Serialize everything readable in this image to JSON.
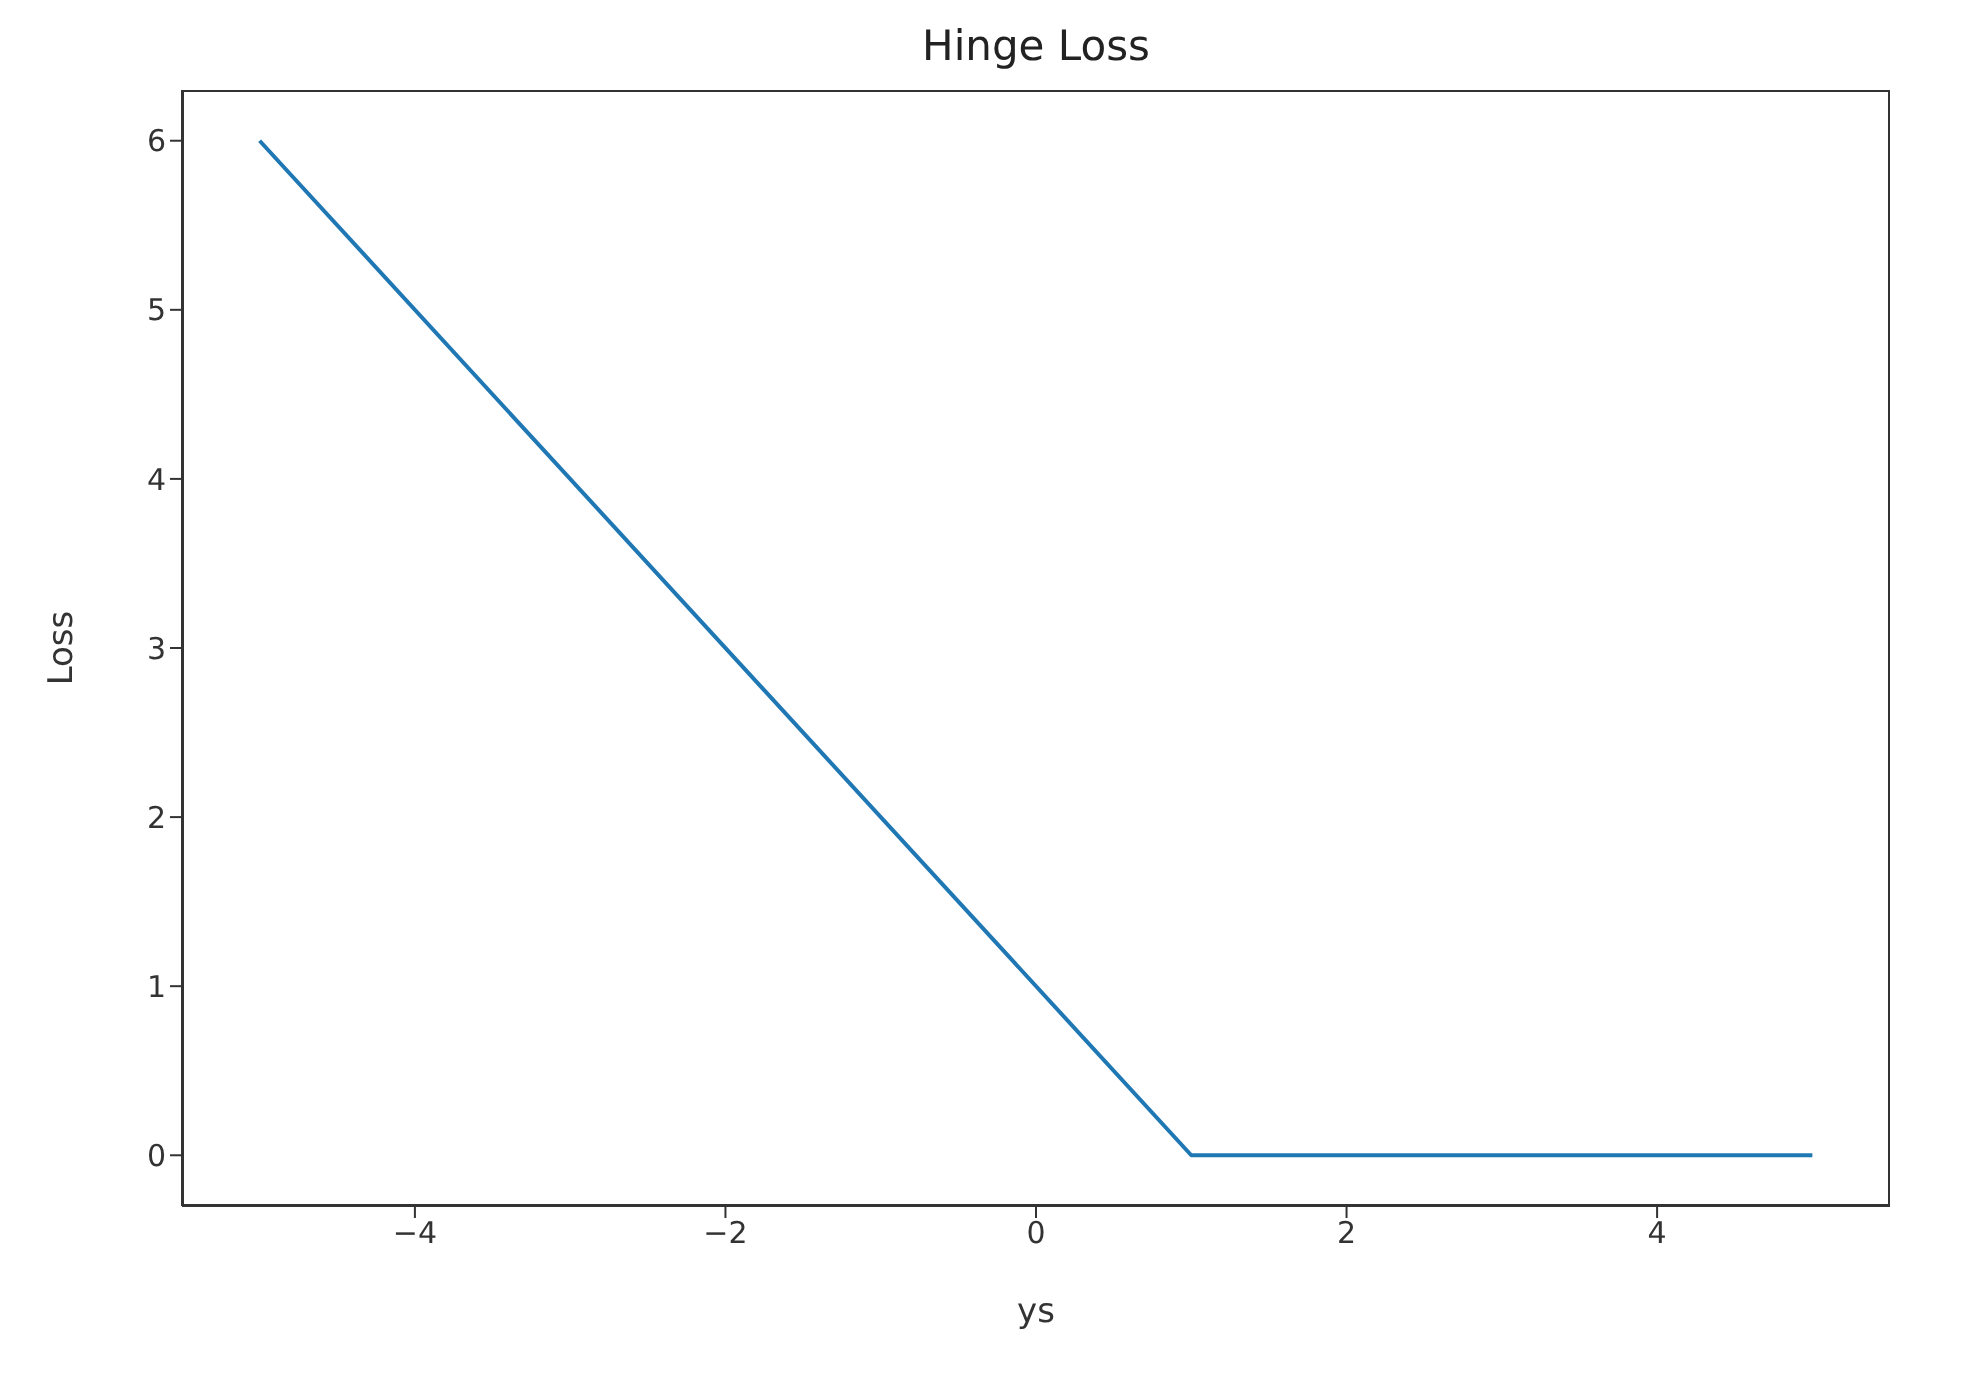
{
  "chart_data": {
    "type": "line",
    "title": "Hinge Loss",
    "xlabel": "ys",
    "ylabel": "Loss",
    "x": [
      -5,
      1,
      5
    ],
    "series": [
      {
        "color": "#1f77b4",
        "values": [
          6,
          0,
          0
        ]
      }
    ],
    "xlim": [
      -5.5,
      5.5
    ],
    "ylim": [
      -0.3,
      6.3
    ],
    "xticks": [
      {
        "value": -4,
        "label": "−4"
      },
      {
        "value": -2,
        "label": "−2"
      },
      0,
      2,
      4
    ],
    "yticks": [
      0,
      1,
      2,
      3,
      4,
      5,
      6
    ],
    "grid": false,
    "legend": false,
    "marker": "none",
    "line_style": "solid"
  }
}
